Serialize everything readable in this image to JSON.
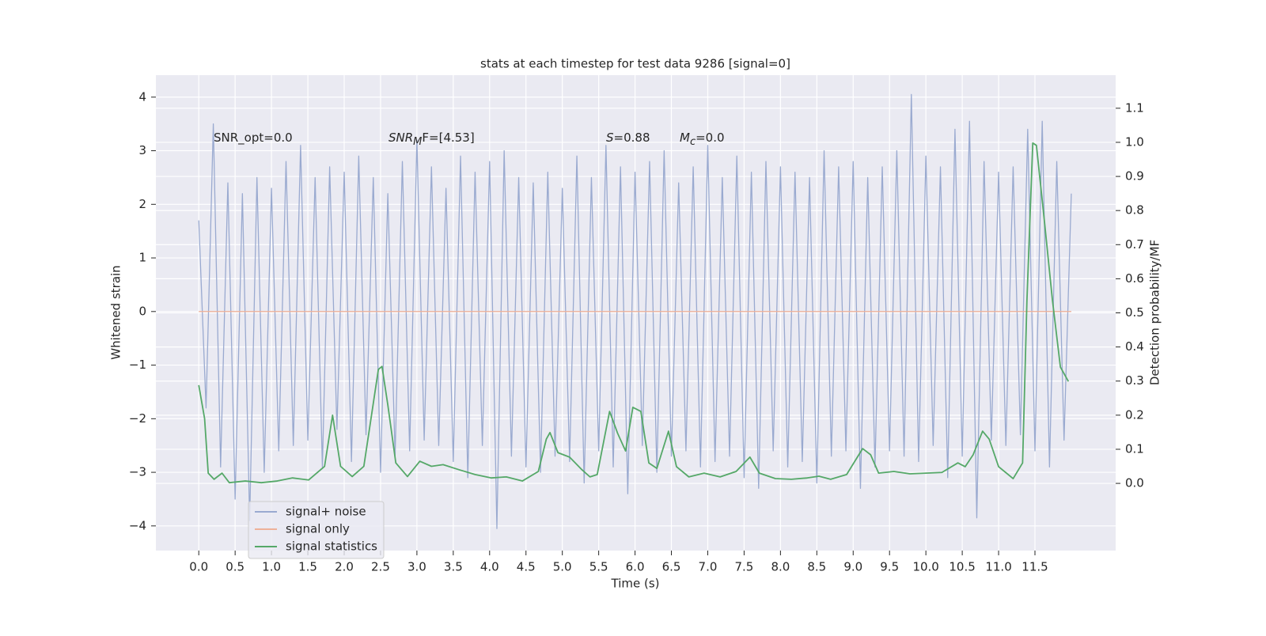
{
  "chart_data": {
    "type": "line",
    "title": "stats at each timestep for test data 9286 [signal=0]",
    "x_label": "Time (s)",
    "y_label": "Whitened strain",
    "y2_label": "Detection probability/MF",
    "annotations": [
      {
        "main": "SNR_opt=0.0"
      },
      {
        "main": "SNR",
        "sub": "M",
        "tail": "F=[4.53]"
      },
      {
        "main": "S",
        "tail": "=0.88"
      },
      {
        "main": "M",
        "sub": "c",
        "tail": "=0.0"
      }
    ],
    "xlim": [
      -0.59,
      12.61
    ],
    "ylim": [
      -4.46,
      4.41
    ],
    "y2lim": [
      -0.197,
      1.197
    ],
    "xticks": [
      {
        "value": 0,
        "label": "0.0"
      },
      {
        "value": 0.5,
        "label": "0.5"
      },
      {
        "value": 1,
        "label": "1.0"
      },
      {
        "value": 1.5,
        "label": "1.5"
      },
      {
        "value": 2,
        "label": "2.0"
      },
      {
        "value": 2.5,
        "label": "2.5"
      },
      {
        "value": 3,
        "label": "3.0"
      },
      {
        "value": 3.5,
        "label": "3.5"
      },
      {
        "value": 4,
        "label": "4.0"
      },
      {
        "value": 4.5,
        "label": "4.5"
      },
      {
        "value": 5,
        "label": "5.0"
      },
      {
        "value": 5.5,
        "label": "5.5"
      },
      {
        "value": 6,
        "label": "6.0"
      },
      {
        "value": 6.5,
        "label": "6.5"
      },
      {
        "value": 7,
        "label": "7.0"
      },
      {
        "value": 7.5,
        "label": "7.5"
      },
      {
        "value": 8,
        "label": "8.0"
      },
      {
        "value": 8.5,
        "label": "8.5"
      },
      {
        "value": 9,
        "label": "9.0"
      },
      {
        "value": 9.5,
        "label": "9.5"
      },
      {
        "value": 10,
        "label": "10.0"
      },
      {
        "value": 10.5,
        "label": "10.5"
      },
      {
        "value": 11,
        "label": "11.0"
      },
      {
        "value": 11.5,
        "label": "11.5"
      }
    ],
    "yticks": [
      {
        "value": -4,
        "label": "−4"
      },
      {
        "value": -3,
        "label": "−3"
      },
      {
        "value": -2,
        "label": "−2"
      },
      {
        "value": -1,
        "label": "−1"
      },
      0,
      1,
      2,
      3,
      4
    ],
    "y2ticks": [
      {
        "value": 0,
        "label": "0.0"
      },
      {
        "value": 0.1,
        "label": "0.1"
      },
      {
        "value": 0.2,
        "label": "0.2"
      },
      {
        "value": 0.3,
        "label": "0.3"
      },
      {
        "value": 0.4,
        "label": "0.4"
      },
      {
        "value": 0.5,
        "label": "0.5"
      },
      {
        "value": 0.6,
        "label": "0.6"
      },
      {
        "value": 0.7,
        "label": "0.7"
      },
      {
        "value": 0.8,
        "label": "0.8"
      },
      {
        "value": 0.9,
        "label": "0.9"
      },
      {
        "value": 1,
        "label": "1.0"
      },
      {
        "value": 1.1,
        "label": "1.1"
      }
    ],
    "grid": true,
    "legend": "lower left",
    "series": [
      {
        "name": "signal+ noise",
        "color": "#9aaad0",
        "x": [
          0,
          0.1,
          0.2,
          0.3,
          0.4,
          0.5,
          0.6,
          0.7,
          0.8,
          0.9,
          1,
          1.1,
          1.2,
          1.3,
          1.4,
          1.5,
          1.6,
          1.7,
          1.8,
          1.9,
          2,
          2.1,
          2.2,
          2.3,
          2.4,
          2.5,
          2.6,
          2.7,
          2.8,
          2.9,
          3,
          3.1,
          3.2,
          3.3,
          3.4,
          3.5,
          3.6,
          3.7,
          3.8,
          3.9,
          4,
          4.1,
          4.2,
          4.3,
          4.4,
          4.5,
          4.6,
          4.7,
          4.8,
          4.9,
          5,
          5.1,
          5.2,
          5.3,
          5.4,
          5.5,
          5.6,
          5.7,
          5.8,
          5.9,
          6,
          6.1,
          6.2,
          6.3,
          6.4,
          6.5,
          6.6,
          6.7,
          6.8,
          6.9,
          7,
          7.1,
          7.2,
          7.3,
          7.4,
          7.5,
          7.6,
          7.7,
          7.8,
          7.9,
          8,
          8.1,
          8.2,
          8.3,
          8.4,
          8.5,
          8.6,
          8.7,
          8.8,
          8.9,
          9,
          9.1,
          9.2,
          9.3,
          9.4,
          9.5,
          9.6,
          9.7,
          9.8,
          9.9,
          10,
          10.1,
          10.2,
          10.3,
          10.4,
          10.5,
          10.6,
          10.7,
          10.8,
          10.9,
          11,
          11.1,
          11.2,
          11.3,
          11.4,
          11.5,
          11.6,
          11.7,
          11.8,
          11.9,
          12
        ],
        "values": [
          1.7,
          -1.8,
          3.5,
          -2.9,
          2.4,
          -3.5,
          2.2,
          -3.9,
          2.5,
          -3.0,
          2.3,
          -2.6,
          2.8,
          -2.5,
          3.1,
          -2.4,
          2.5,
          -2.9,
          2.7,
          -2.2,
          2.6,
          -2.8,
          2.9,
          -2.3,
          2.5,
          -3.0,
          2.2,
          -2.7,
          2.8,
          -2.6,
          3.2,
          -2.4,
          2.7,
          -2.5,
          2.3,
          -2.8,
          2.9,
          -3.1,
          2.6,
          -2.5,
          2.8,
          -4.05,
          3.0,
          -2.7,
          2.5,
          -2.9,
          2.4,
          -3.0,
          2.6,
          -2.7,
          2.3,
          -2.8,
          2.9,
          -3.2,
          2.5,
          -2.6,
          3.1,
          -2.9,
          2.7,
          -3.4,
          2.6,
          -2.5,
          2.8,
          -3.0,
          3.0,
          -2.7,
          2.4,
          -2.6,
          2.7,
          -2.9,
          3.1,
          -2.8,
          2.5,
          -2.7,
          2.9,
          -3.1,
          2.6,
          -3.3,
          2.8,
          -2.6,
          2.7,
          -2.9,
          2.6,
          -2.8,
          2.5,
          -3.2,
          3.0,
          -2.7,
          2.7,
          -2.6,
          2.8,
          -3.3,
          2.5,
          -2.9,
          2.7,
          -2.6,
          3.0,
          -2.7,
          4.05,
          -2.8,
          2.9,
          -2.5,
          2.7,
          -3.1,
          3.4,
          -2.7,
          3.55,
          -3.85,
          2.8,
          -2.4,
          2.6,
          -2.5,
          2.7,
          -2.3,
          3.4,
          -2.6,
          3.55,
          -2.9,
          2.8,
          -2.4,
          2.2
        ]
      },
      {
        "name": "signal only",
        "color": "#eeb199",
        "x": [
          0,
          12
        ],
        "values": [
          0,
          0
        ]
      },
      {
        "name": "signal statistics",
        "color": "#55a868",
        "axis": "y2",
        "x": [
          0,
          0.08,
          0.13,
          0.21,
          0.32,
          0.42,
          0.64,
          0.86,
          1.08,
          1.29,
          1.51,
          1.73,
          1.84,
          1.95,
          2.11,
          2.27,
          2.47,
          2.52,
          2.6,
          2.71,
          2.87,
          3.04,
          3.2,
          3.36,
          3.58,
          3.8,
          4.02,
          4.23,
          4.45,
          4.67,
          4.78,
          4.83,
          4.94,
          5.1,
          5.27,
          5.38,
          5.48,
          5.65,
          5.76,
          5.87,
          5.97,
          6.08,
          6.19,
          6.3,
          6.46,
          6.57,
          6.74,
          6.95,
          7.17,
          7.39,
          7.58,
          7.71,
          7.93,
          8.15,
          8.37,
          8.53,
          8.69,
          8.91,
          9.13,
          9.24,
          9.35,
          9.56,
          9.78,
          10.0,
          10.22,
          10.44,
          10.54,
          10.65,
          10.78,
          10.87,
          11.0,
          11.2,
          11.33,
          11.39,
          11.47,
          11.52,
          11.63,
          11.74,
          11.85,
          11.96
        ],
        "values": [
          0.288,
          0.19,
          0.03,
          0.012,
          0.03,
          0.002,
          0.007,
          0.002,
          0.007,
          0.016,
          0.01,
          0.05,
          0.2,
          0.05,
          0.02,
          0.05,
          0.334,
          0.343,
          0.23,
          0.06,
          0.02,
          0.065,
          0.05,
          0.055,
          0.04,
          0.026,
          0.016,
          0.019,
          0.007,
          0.035,
          0.13,
          0.149,
          0.09,
          0.077,
          0.04,
          0.019,
          0.026,
          0.211,
          0.147,
          0.095,
          0.223,
          0.211,
          0.06,
          0.044,
          0.153,
          0.049,
          0.019,
          0.03,
          0.019,
          0.035,
          0.077,
          0.03,
          0.014,
          0.012,
          0.016,
          0.021,
          0.012,
          0.026,
          0.102,
          0.084,
          0.03,
          0.035,
          0.028,
          0.03,
          0.032,
          0.06,
          0.049,
          0.084,
          0.153,
          0.13,
          0.049,
          0.014,
          0.06,
          0.538,
          0.998,
          0.991,
          0.769,
          0.538,
          0.341,
          0.299
        ]
      }
    ]
  }
}
